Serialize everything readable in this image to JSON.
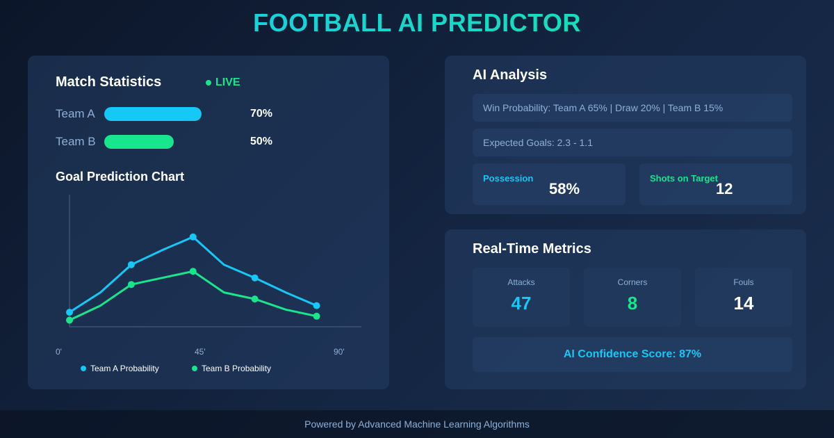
{
  "app": {
    "title": "FOOTBALL AI PREDICTOR"
  },
  "colors": {
    "accent": "#16c8f5",
    "secondary": "#19e68c",
    "muted": "#8fb0d8",
    "panel": "#1f3658"
  },
  "match_stats": {
    "title": "Match Statistics",
    "live_label": "LIVE",
    "teams": [
      {
        "name": "Team A",
        "percent_label": "70%",
        "fill_fraction": 0.7,
        "color": "#16c8f5"
      },
      {
        "name": "Team B",
        "percent_label": "50%",
        "fill_fraction": 0.5,
        "color": "#19e68c"
      }
    ]
  },
  "chart_data": {
    "type": "line",
    "title": "Goal Prediction Chart",
    "x_tick_labels": [
      "0'",
      "45'",
      "90'"
    ],
    "x_range": [
      0,
      90
    ],
    "y_range": [
      0,
      100
    ],
    "series": [
      {
        "name": "Team A Probability",
        "color": "#16c8f5",
        "x": [
          0,
          10,
          20,
          30,
          40,
          50,
          60,
          70,
          80
        ],
        "y": [
          11,
          26,
          47,
          58,
          68,
          47,
          37,
          26,
          16
        ],
        "markers": [
          0,
          2,
          4,
          6,
          8
        ]
      },
      {
        "name": "Team B Probability",
        "color": "#19e68c",
        "x": [
          0,
          10,
          20,
          30,
          40,
          50,
          60,
          70,
          80
        ],
        "y": [
          5,
          16,
          32,
          37,
          42,
          26,
          21,
          13,
          8
        ],
        "markers": [
          0,
          2,
          4,
          6,
          8
        ]
      }
    ],
    "grid": false,
    "legend": "bottom"
  },
  "ai_analysis": {
    "title": "AI Analysis",
    "win_probability": "Win Probability: Team A 65% | Draw 20% | Team B 15%",
    "expected_goals": "Expected Goals: 2.3 - 1.1",
    "possession": {
      "label": "Possession",
      "value": "58%"
    },
    "shots_on_target": {
      "label": "Shots on Target",
      "value": "12"
    }
  },
  "metrics": {
    "title": "Real-Time Metrics",
    "items": [
      {
        "label": "Attacks",
        "value": "47",
        "color": "#16c8f5"
      },
      {
        "label": "Corners",
        "value": "8",
        "color": "#19e68c"
      },
      {
        "label": "Fouls",
        "value": "14",
        "color": "#ffffff"
      }
    ],
    "confidence": "AI Confidence Score: 87%"
  },
  "footer": {
    "text": "Powered by Advanced Machine Learning Algorithms"
  }
}
